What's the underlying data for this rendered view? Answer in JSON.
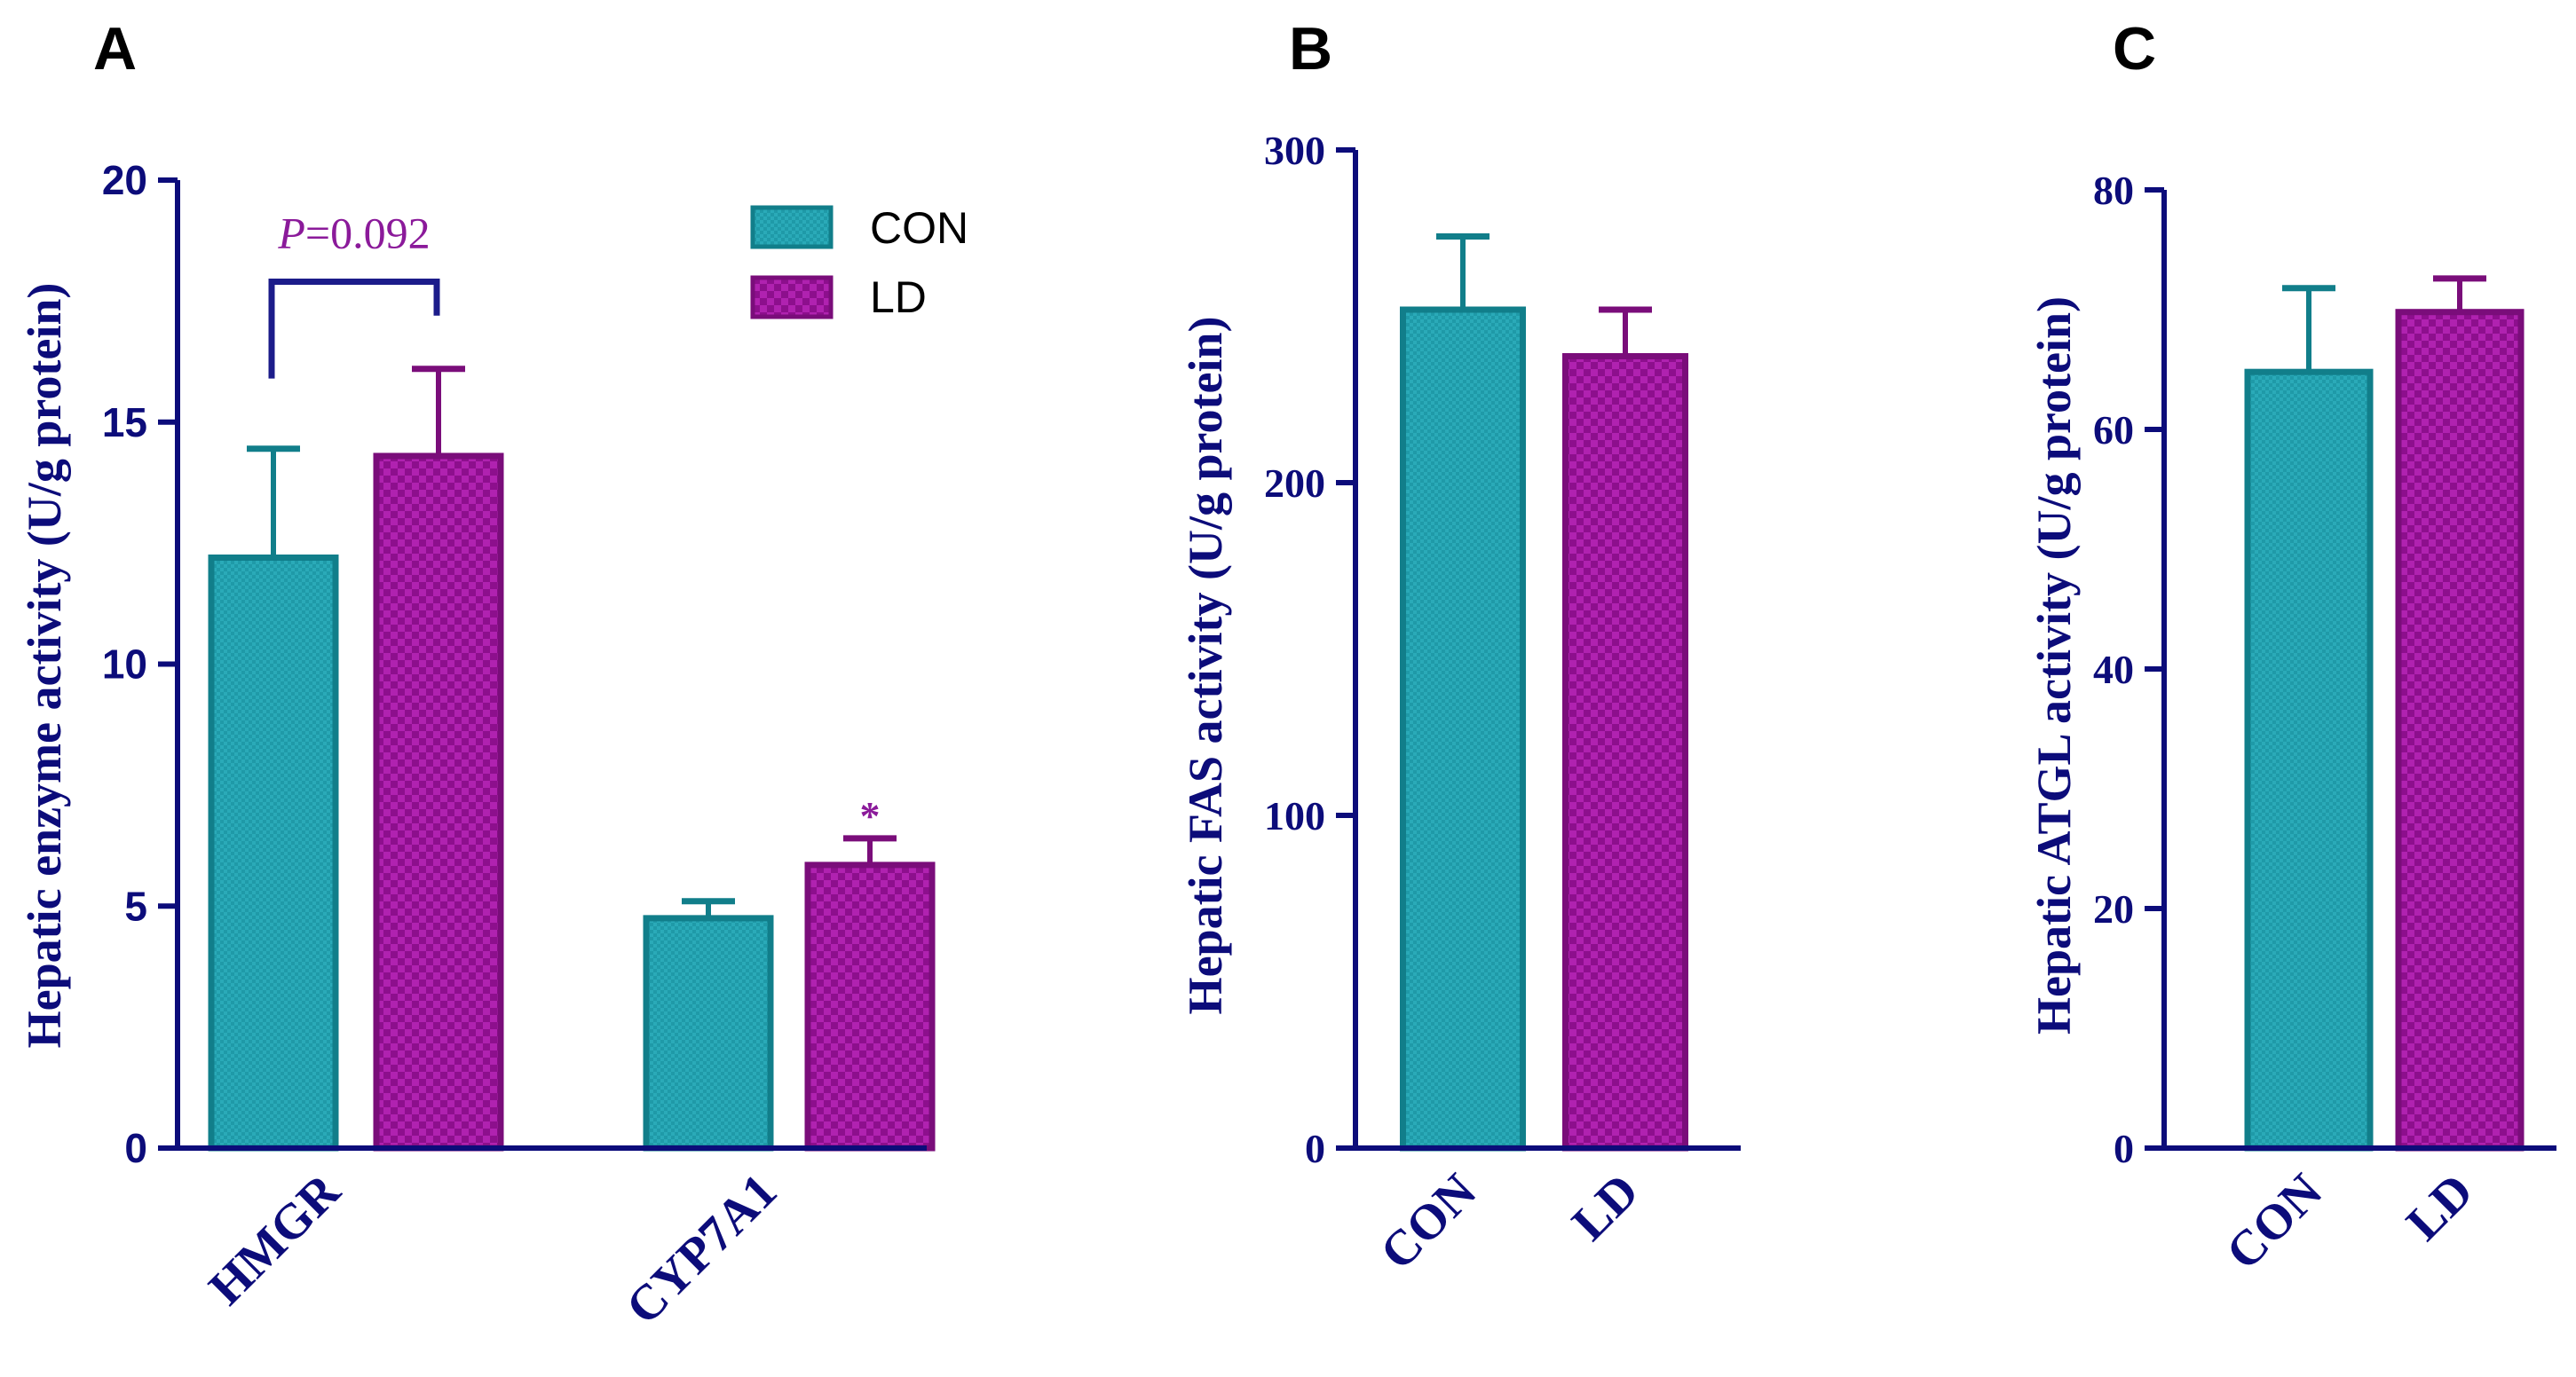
{
  "colors": {
    "con_fill": "#1f9aa8",
    "con_edge": "#117e8a",
    "ld_fill": "#9b149b",
    "ld_edge": "#7a0d7a",
    "axis": "#0c0c7a",
    "annotation": "#8b1a9a",
    "bracket": "#1c1c8a"
  },
  "chart_data": [
    {
      "panel": "A",
      "type": "bar",
      "ylabel": "Hepatic enzyme activity (U/g protein)",
      "ylim": [
        0,
        20
      ],
      "yticks": [
        "0",
        "5",
        "10",
        "15",
        "20"
      ],
      "categories": [
        "HMGR",
        "CYP7A1"
      ],
      "legend": {
        "placement": "top-right",
        "entries": [
          "CON",
          "LD"
        ]
      },
      "series": [
        {
          "name": "CON",
          "values": [
            12.2,
            4.75
          ],
          "errors": [
            2.25,
            0.35
          ]
        },
        {
          "name": "LD",
          "values": [
            14.3,
            5.85
          ],
          "errors": [
            1.8,
            0.55
          ]
        }
      ],
      "annotations": {
        "bracket_label_italic": "P",
        "bracket_label_rest": "=0.092",
        "star": "*"
      }
    },
    {
      "panel": "B",
      "type": "bar",
      "ylabel": "Hepatic FAS activity (U/g protein)",
      "ylim": [
        0,
        300
      ],
      "yticks": [
        "0",
        "100",
        "200",
        "300"
      ],
      "categories": [
        "CON",
        "LD"
      ],
      "series": [
        {
          "name": "Hepatic FAS activity",
          "values": [
            252,
            238
          ],
          "errors": [
            22,
            14
          ]
        }
      ]
    },
    {
      "panel": "C",
      "type": "bar",
      "ylabel": "Hepatic ATGL activity (U/g protein)",
      "ylim": [
        0,
        80
      ],
      "yticks": [
        "0",
        "20",
        "40",
        "60",
        "80"
      ],
      "categories": [
        "CON",
        "LD"
      ],
      "series": [
        {
          "name": "Hepatic ATGL activity",
          "values": [
            64.8,
            69.8
          ],
          "errors": [
            7.0,
            2.8
          ]
        }
      ]
    }
  ]
}
